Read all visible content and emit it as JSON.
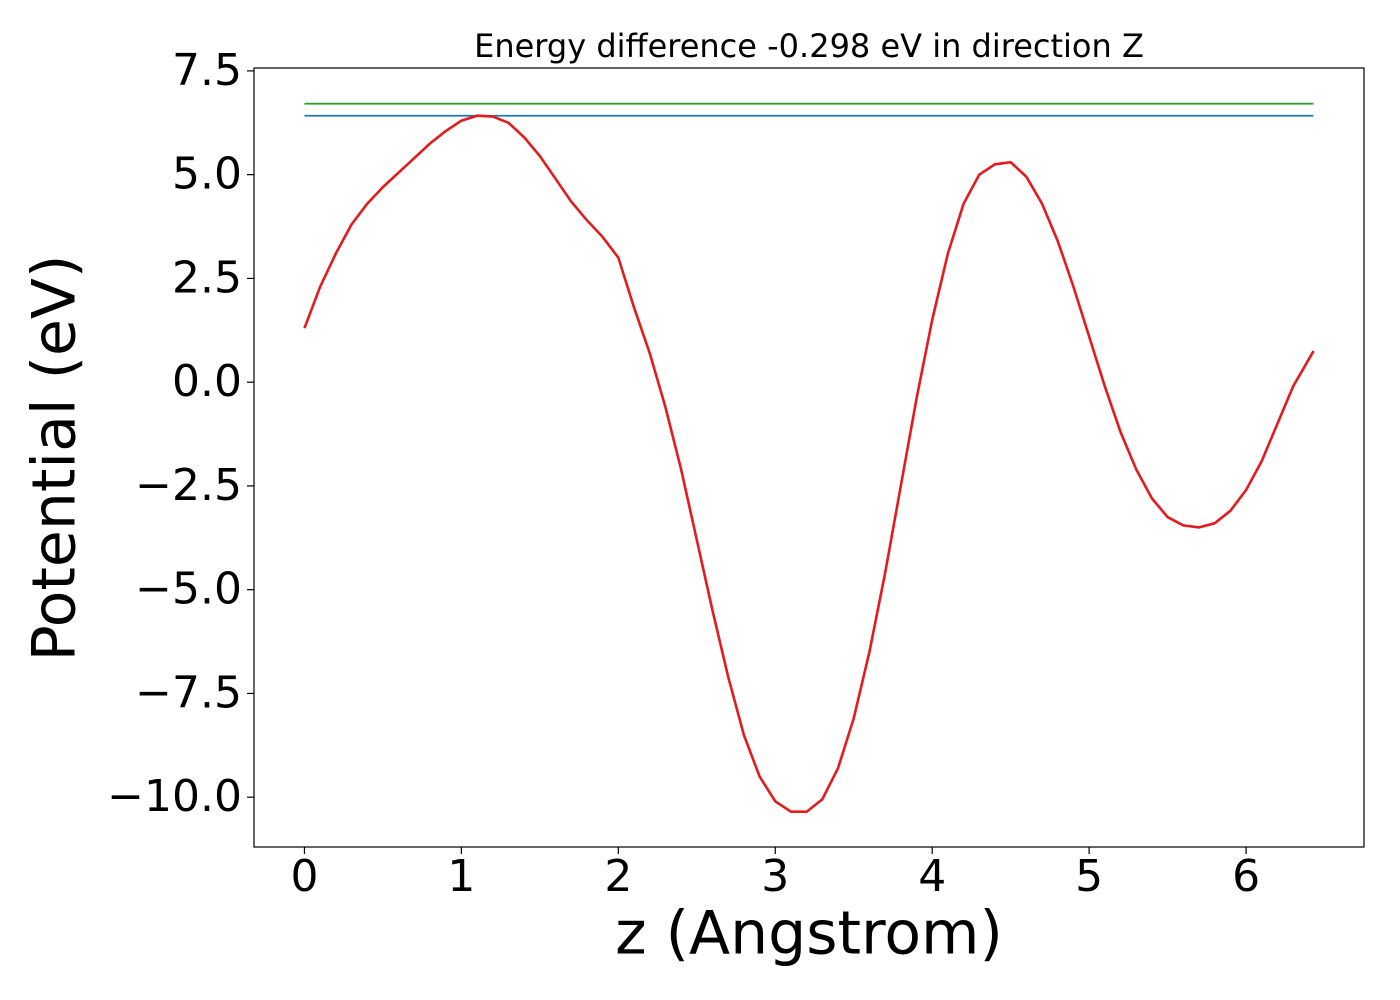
{
  "chart_data": {
    "type": "line",
    "title": "Energy difference -0.298 eV in direction Z",
    "x_label": "z (Angstrom)",
    "y_label": "Potential (eV)",
    "xlim": [
      -0.3215,
      6.7515
    ],
    "ylim": [
      -11.2,
      7.57
    ],
    "xticks": [
      0,
      1,
      2,
      3,
      4,
      5,
      6
    ],
    "yticks": [
      {
        "value": -10,
        "label": "−10.0"
      },
      {
        "value": -7.5,
        "label": "−7.5"
      },
      {
        "value": -5,
        "label": "−5.0"
      },
      {
        "value": -2.5,
        "label": "−2.5"
      },
      {
        "value": 0,
        "label": "0.0"
      },
      2.5,
      {
        "value": 5,
        "label": "5.0"
      },
      7.5
    ],
    "series": [
      {
        "color": "#2ca02c",
        "x": [
          0,
          6.43
        ],
        "values": [
          6.71,
          6.71
        ]
      },
      {
        "color": "#1f77b4",
        "x": [
          0,
          6.43
        ],
        "values": [
          6.42,
          6.42
        ]
      },
      {
        "color": "#e41a1c",
        "x": [
          0,
          0.1,
          0.2,
          0.3,
          0.4,
          0.5,
          0.6,
          0.7,
          0.8,
          0.9,
          1.0,
          1.1,
          1.2,
          1.3,
          1.4,
          1.5,
          1.6,
          1.7,
          1.8,
          1.9,
          2.0,
          2.1,
          2.2,
          2.3,
          2.4,
          2.5,
          2.6,
          2.7,
          2.8,
          2.9,
          3.0,
          3.1,
          3.2,
          3.3,
          3.4,
          3.5,
          3.6,
          3.7,
          3.8,
          3.9,
          4.0,
          4.1,
          4.2,
          4.3,
          4.4,
          4.5,
          4.6,
          4.7,
          4.8,
          4.9,
          5.0,
          5.1,
          5.2,
          5.3,
          5.4,
          5.5,
          5.6,
          5.7,
          5.8,
          5.9,
          6.0,
          6.1,
          6.2,
          6.3,
          6.43
        ],
        "values": [
          1.3,
          2.3,
          3.1,
          3.8,
          4.3,
          4.7,
          5.05,
          5.4,
          5.75,
          6.05,
          6.3,
          6.42,
          6.4,
          6.25,
          5.9,
          5.45,
          4.9,
          4.35,
          3.9,
          3.5,
          3.0,
          1.8,
          0.7,
          -0.6,
          -2.1,
          -3.8,
          -5.5,
          -7.1,
          -8.5,
          -9.5,
          -10.1,
          -10.35,
          -10.35,
          -10.05,
          -9.3,
          -8.1,
          -6.5,
          -4.6,
          -2.5,
          -0.4,
          1.5,
          3.1,
          4.3,
          5.0,
          5.25,
          5.3,
          4.95,
          4.3,
          3.4,
          2.3,
          1.1,
          -0.1,
          -1.2,
          -2.1,
          -2.8,
          -3.25,
          -3.45,
          -3.5,
          -3.4,
          -3.1,
          -2.6,
          -1.9,
          -1.0,
          -0.1,
          0.75
        ]
      }
    ]
  }
}
